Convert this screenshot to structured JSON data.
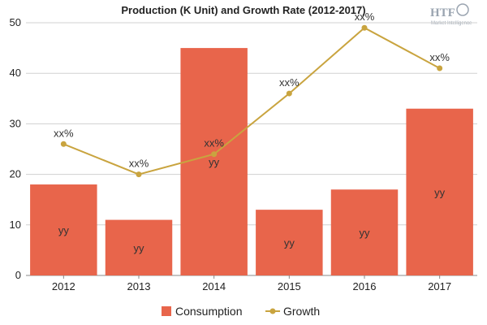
{
  "chart_data": {
    "type": "bar+line",
    "title": "Production (K Unit) and Growth Rate (2012-2017)",
    "categories": [
      "2012",
      "2013",
      "2014",
      "2015",
      "2016",
      "2017"
    ],
    "ylim": [
      0,
      50
    ],
    "yticks": [
      0,
      10,
      20,
      30,
      40,
      50
    ],
    "grid": true,
    "legend_position": "bottom",
    "series": [
      {
        "name": "Consumption",
        "type": "bar",
        "color": "#e8654b",
        "values": [
          18,
          11,
          45,
          13,
          17,
          33
        ],
        "labels": [
          "yy",
          "yy",
          "yy",
          "yy",
          "yy",
          "yy"
        ]
      },
      {
        "name": "Growth",
        "type": "line",
        "color": "#c9a43f",
        "values": [
          26,
          20,
          24,
          36,
          49,
          41
        ],
        "labels": [
          "xx%",
          "xx%",
          "xx%",
          "xx%",
          "xx%",
          "xx%"
        ]
      }
    ]
  },
  "logo": {
    "text": "HTF",
    "subtext": "Market Intelligence"
  }
}
